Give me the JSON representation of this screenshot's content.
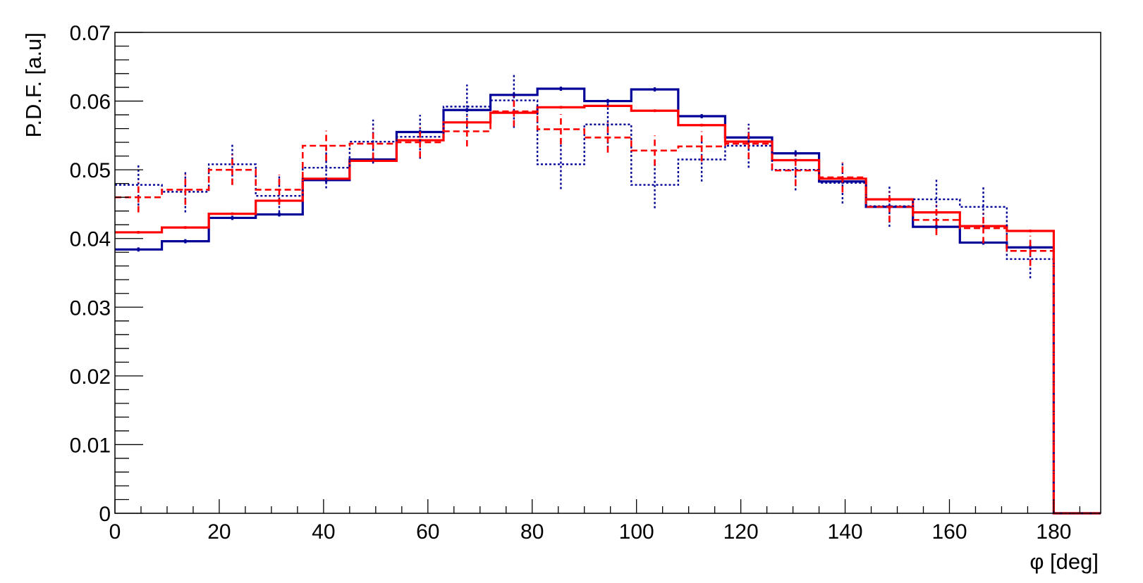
{
  "chart_data": {
    "type": "line",
    "title": "",
    "xlabel": "φ [deg]",
    "ylabel": "P.D.F. [a.u]",
    "xlim": [
      0,
      189
    ],
    "ylim": [
      0,
      0.07
    ],
    "x_ticks": [
      "0",
      "20",
      "40",
      "60",
      "80",
      "100",
      "120",
      "140",
      "160",
      "180"
    ],
    "y_ticks": [
      "0",
      "0.01",
      "0.02",
      "0.03",
      "0.04",
      "0.05",
      "0.06",
      "0.07"
    ],
    "grid": false,
    "legend": "none",
    "bin_edges": [
      0,
      9,
      18,
      27,
      36,
      45,
      54,
      63,
      72,
      81,
      90,
      99,
      108,
      117,
      126,
      135,
      144,
      153,
      162,
      171,
      180,
      189
    ],
    "series": [
      {
        "style": "blue-solid",
        "color": "#000099",
        "values": [
          0.0384,
          0.0396,
          0.043,
          0.0435,
          0.0485,
          0.0515,
          0.0555,
          0.0587,
          0.0609,
          0.0618,
          0.06,
          0.0617,
          0.0578,
          0.0547,
          0.0524,
          0.0483,
          0.0446,
          0.0417,
          0.0394,
          0.0387,
          0.0,
          0.0
        ],
        "errors": [
          0.0003,
          0.0003,
          0.0003,
          0.0003,
          0.0003,
          0.0003,
          0.0003,
          0.0003,
          0.0003,
          0.0003,
          0.0003,
          0.0003,
          0.0003,
          0.0003,
          0.0003,
          0.0003,
          0.0003,
          0.0003,
          0.0003,
          0.0003,
          0,
          0
        ]
      },
      {
        "style": "red-solid",
        "color": "#ff0000",
        "values": [
          0.0409,
          0.0416,
          0.0436,
          0.0455,
          0.0487,
          0.0513,
          0.0543,
          0.0569,
          0.0583,
          0.0591,
          0.0593,
          0.0586,
          0.0565,
          0.0541,
          0.0514,
          0.0487,
          0.0457,
          0.0438,
          0.0418,
          0.0411,
          0.0,
          0.0
        ],
        "errors": [
          0.0002,
          0.0002,
          0.0002,
          0.0002,
          0.0002,
          0.0002,
          0.0002,
          0.0002,
          0.0002,
          0.0002,
          0.0002,
          0.0002,
          0.0002,
          0.0002,
          0.0002,
          0.0002,
          0.0002,
          0.0002,
          0.0002,
          0.0002,
          0,
          0
        ]
      },
      {
        "style": "blue-dotted",
        "color": "#000099",
        "values": [
          0.0478,
          0.0468,
          0.0508,
          0.0462,
          0.0503,
          0.0541,
          0.0548,
          0.0592,
          0.0601,
          0.0508,
          0.0566,
          0.0478,
          0.0515,
          0.0535,
          0.05,
          0.0481,
          0.0447,
          0.0457,
          0.0446,
          0.037,
          0.0,
          0.0
        ],
        "errors": [
          0.003,
          0.003,
          0.003,
          0.003,
          0.003,
          0.0032,
          0.0032,
          0.0032,
          0.004,
          0.0036,
          0.0034,
          0.0034,
          0.0032,
          0.0032,
          0.003,
          0.003,
          0.003,
          0.003,
          0.003,
          0.0028,
          0,
          0
        ]
      },
      {
        "style": "red-dashed",
        "color": "#ff0000",
        "values": [
          0.046,
          0.0471,
          0.05,
          0.0471,
          0.0535,
          0.0538,
          0.054,
          0.0556,
          0.0585,
          0.0559,
          0.0547,
          0.0528,
          0.0534,
          0.0538,
          0.0499,
          0.0489,
          0.0446,
          0.0427,
          0.0415,
          0.0382,
          0.0,
          0.0
        ],
        "errors": [
          0.0022,
          0.0022,
          0.0022,
          0.0022,
          0.0022,
          0.0022,
          0.0022,
          0.0022,
          0.0022,
          0.0022,
          0.0022,
          0.0022,
          0.0022,
          0.0022,
          0.0022,
          0.0022,
          0.0022,
          0.0022,
          0.0022,
          0.0022,
          0,
          0
        ]
      }
    ]
  }
}
